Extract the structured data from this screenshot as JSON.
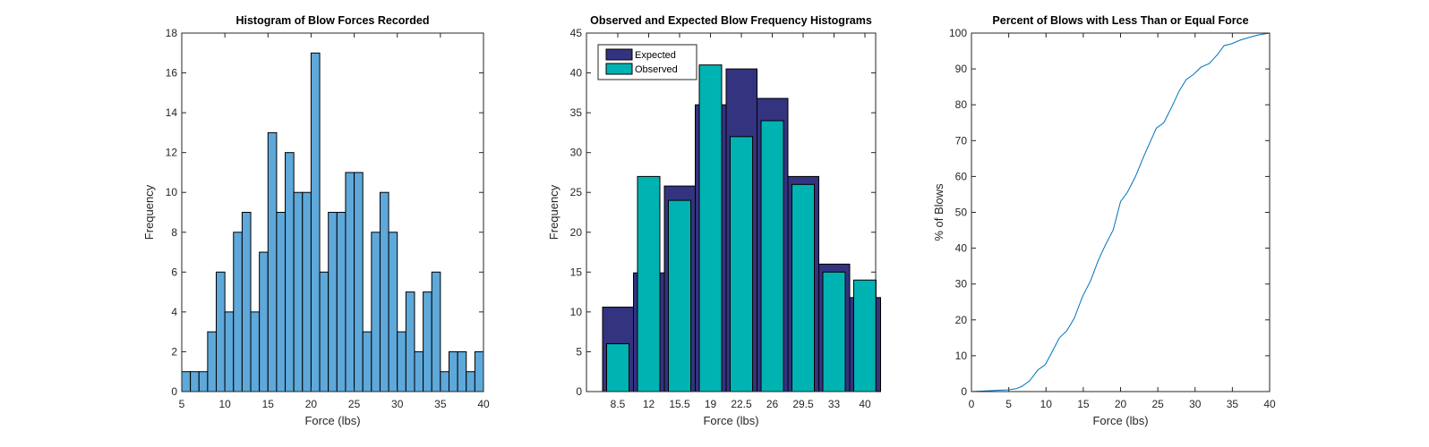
{
  "chart_data": [
    {
      "type": "bar",
      "title": "Histogram of Blow Forces Recorded",
      "xlabel": "Force (lbs)",
      "ylabel": "Frequency",
      "xlim": [
        5,
        40
      ],
      "ylim": [
        0,
        18
      ],
      "xticks": [
        5,
        10,
        15,
        20,
        25,
        30,
        35,
        40
      ],
      "yticks": [
        0,
        2,
        4,
        6,
        8,
        10,
        12,
        14,
        16,
        18
      ],
      "bin_edges_start": 5,
      "bin_width": 1,
      "values": [
        1,
        1,
        1,
        3,
        6,
        4,
        8,
        9,
        4,
        7,
        13,
        9,
        12,
        10,
        10,
        17,
        6,
        9,
        9,
        11,
        11,
        3,
        8,
        10,
        8,
        3,
        5,
        2,
        5,
        6,
        1,
        2,
        2,
        1,
        2
      ],
      "color": "#5ea8da"
    },
    {
      "type": "bar",
      "title": "Observed and Expected Blow Frequency Histograms",
      "xlabel": "Force (lbs)",
      "ylabel": "Frequency",
      "ylim": [
        0,
        45
      ],
      "yticks": [
        0,
        5,
        10,
        15,
        20,
        25,
        30,
        35,
        40,
        45
      ],
      "categories": [
        "8.5",
        "12",
        "15.5",
        "19",
        "22.5",
        "26",
        "29.5",
        "33",
        "40"
      ],
      "series": [
        {
          "name": "Expected",
          "color": "#333380",
          "values": [
            10.6,
            14.9,
            25.8,
            36.0,
            40.5,
            36.8,
            27.0,
            16.0,
            11.8
          ]
        },
        {
          "name": "Observed",
          "color": "#00b3b3",
          "values": [
            6,
            27,
            24,
            41,
            32,
            34,
            26,
            15,
            14
          ]
        }
      ],
      "legend": "top-left"
    },
    {
      "type": "line",
      "title": "Percent of Blows with Less Than or Equal Force",
      "xlabel": "Force (lbs)",
      "ylabel": "% of Blows",
      "xlim": [
        0,
        40
      ],
      "ylim": [
        0,
        100
      ],
      "xticks": [
        0,
        5,
        10,
        15,
        20,
        25,
        30,
        35,
        40
      ],
      "yticks": [
        0,
        10,
        20,
        30,
        40,
        50,
        60,
        70,
        80,
        90,
        100
      ],
      "color": "#0072bd",
      "x": [
        0,
        5,
        6,
        6.8,
        7.8,
        8.9,
        9.9,
        10.8,
        11.8,
        12.8,
        13.8,
        14.9,
        16,
        17,
        18,
        19,
        20,
        20.9,
        22,
        23.2,
        24.8,
        25.8,
        26.9,
        27.9,
        28.8,
        29.8,
        30.8,
        31.9,
        33,
        33.9,
        34.9,
        36,
        36.8,
        37.6,
        38.5,
        40
      ],
      "y": [
        0,
        0.5,
        0.8,
        1.5,
        3,
        6,
        7.5,
        11,
        15,
        17,
        20.5,
        26.5,
        31,
        36.5,
        41,
        45,
        53,
        55.5,
        60,
        66,
        73.5,
        75,
        79.5,
        84,
        87,
        88.5,
        90.5,
        91.5,
        94,
        96.5,
        97,
        98,
        98.5,
        99,
        99.5,
        100
      ]
    }
  ]
}
